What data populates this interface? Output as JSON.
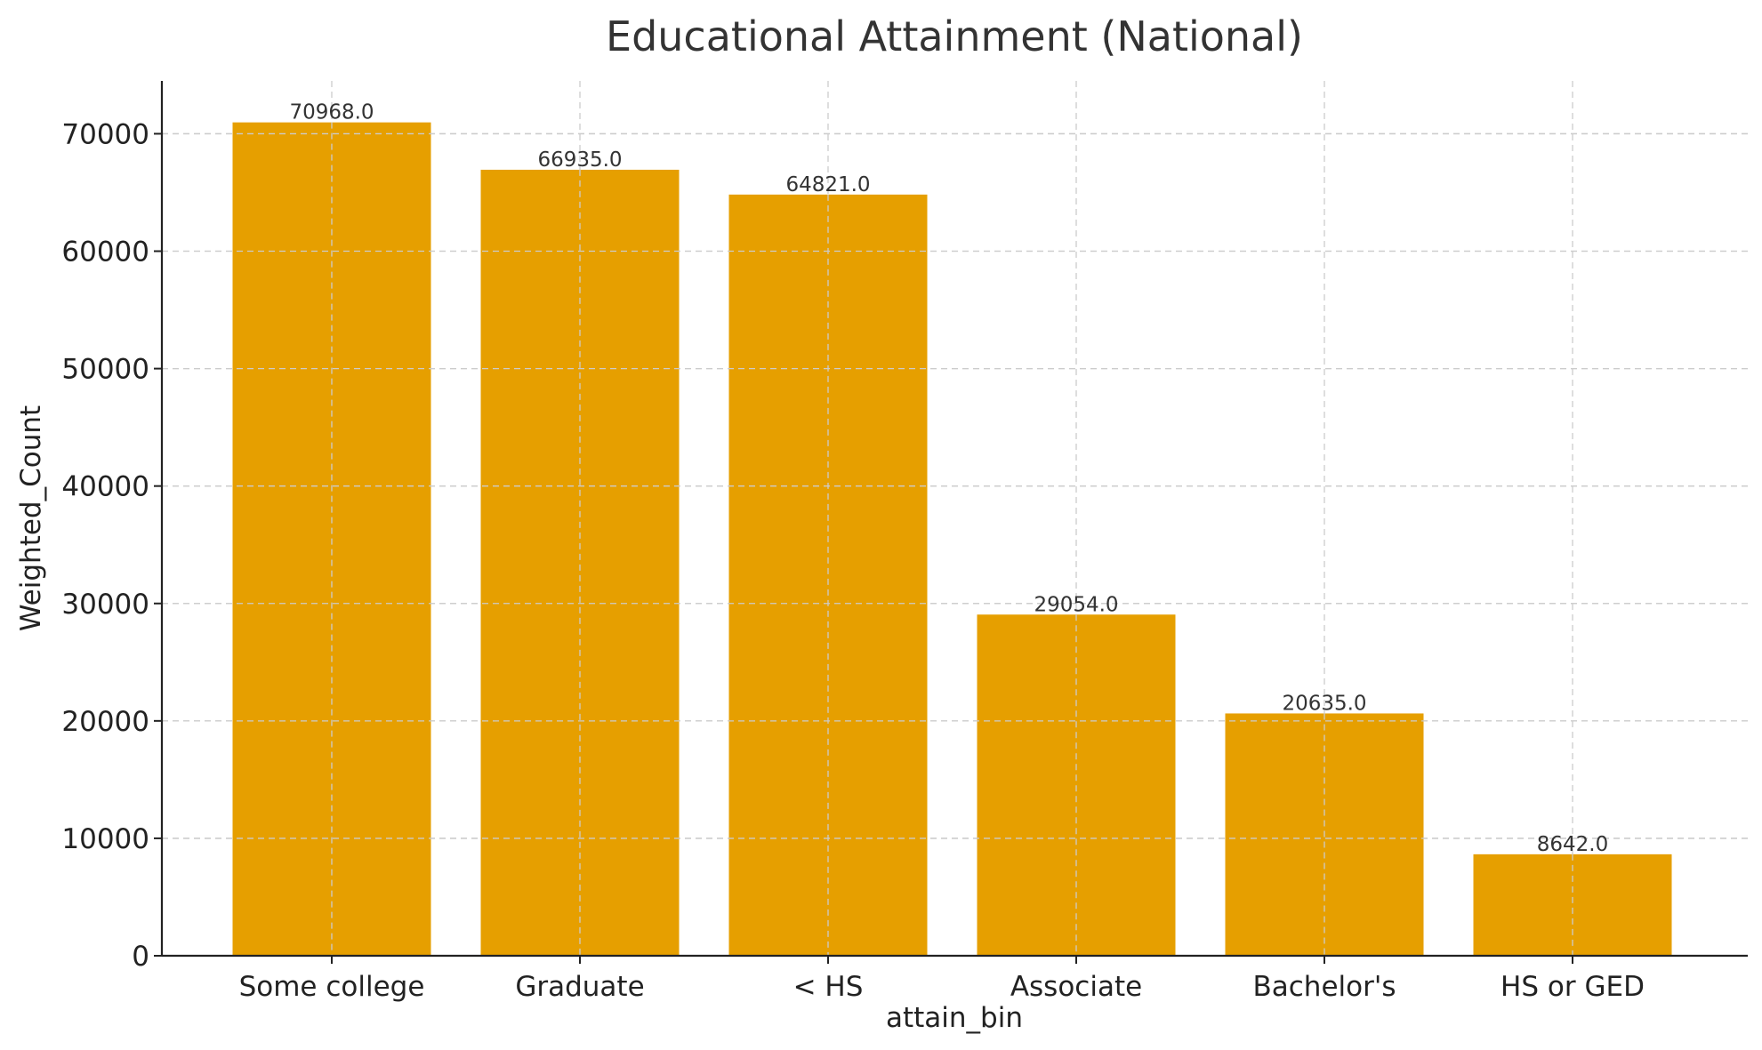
{
  "chart_data": {
    "type": "bar",
    "title": "Educational Attainment (National)",
    "xlabel": "attain_bin",
    "ylabel": "Weighted_Count",
    "categories": [
      "Some college",
      "Graduate",
      "< HS",
      "Associate",
      "Bachelor's",
      "HS or GED"
    ],
    "values": [
      70968.0,
      66935.0,
      64821.0,
      29054.0,
      20635.0,
      8642.0
    ],
    "data_labels": [
      "70968.0",
      "66935.0",
      "64821.0",
      "29054.0",
      "20635.0",
      "8642.0"
    ],
    "y_ticks": [
      0,
      10000,
      20000,
      30000,
      40000,
      50000,
      60000,
      70000
    ],
    "y_tick_labels": [
      "0",
      "10000",
      "20000",
      "30000",
      "40000",
      "50000",
      "60000",
      "70000"
    ],
    "ylim": [
      0,
      74500
    ],
    "grid": true,
    "bar_color": "#E69F00"
  }
}
